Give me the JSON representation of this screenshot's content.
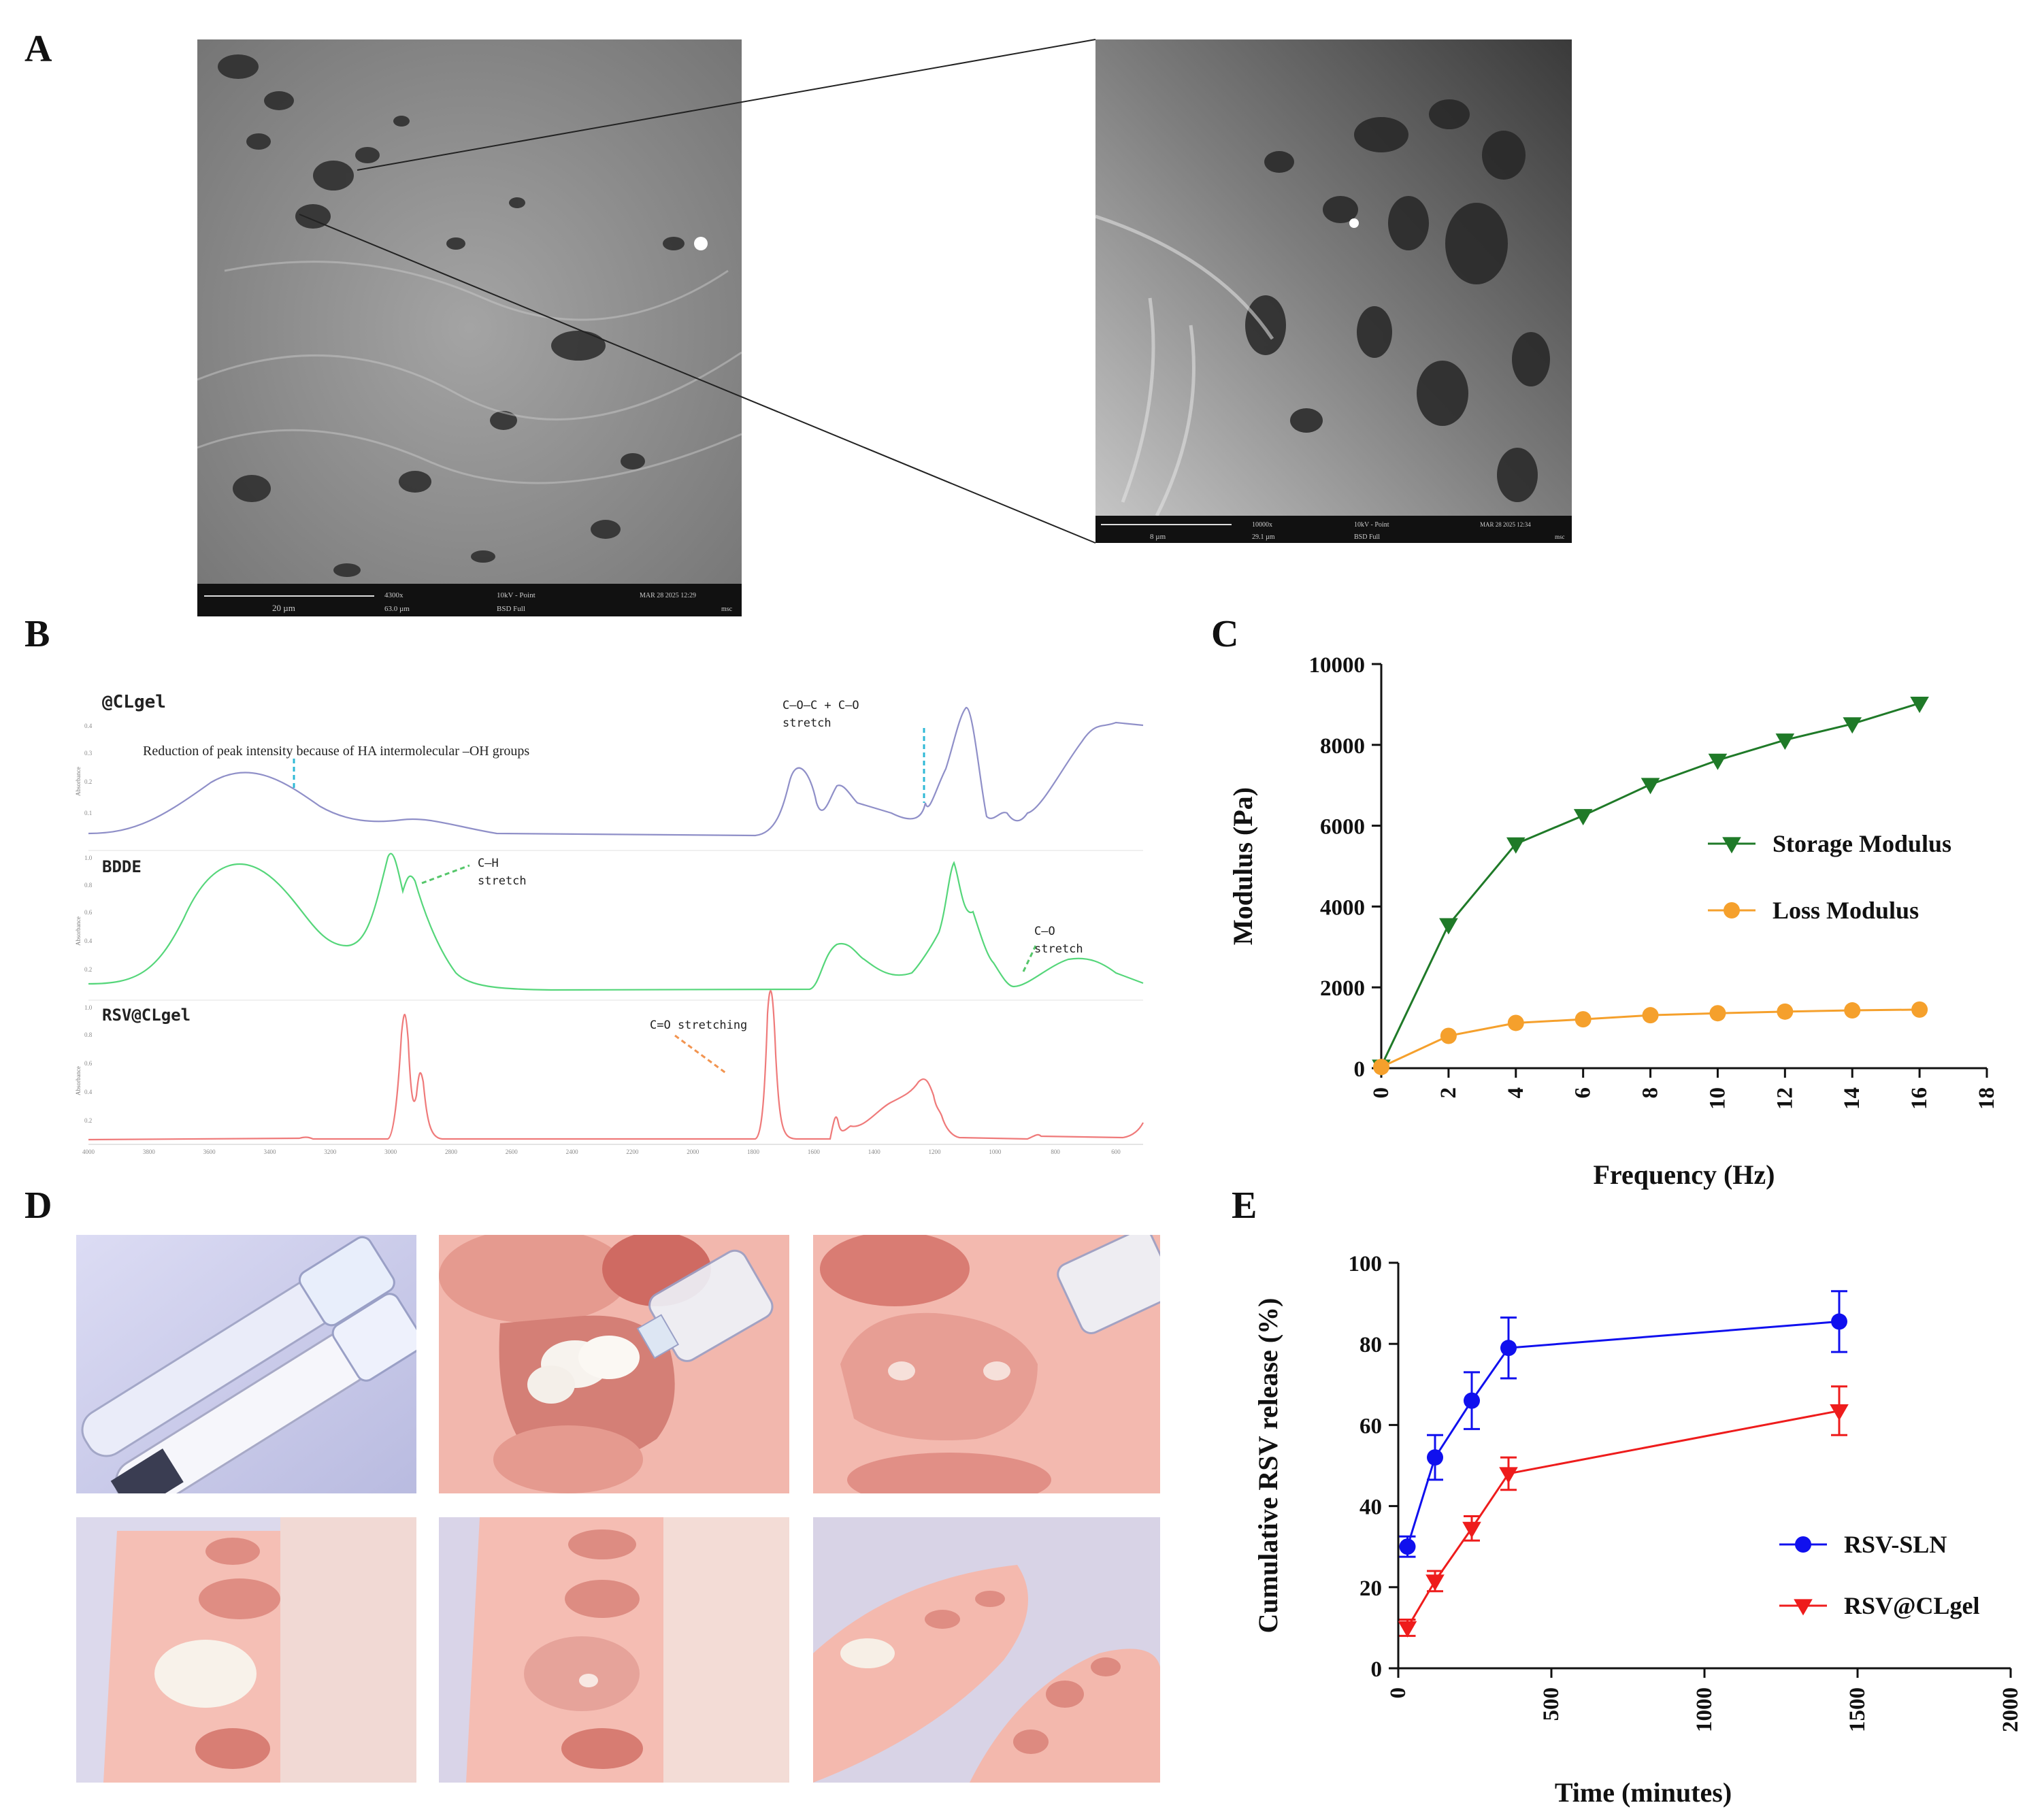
{
  "panels": {
    "A": "A",
    "B": "B",
    "C": "C",
    "D": "D",
    "E": "E"
  },
  "sem": {
    "left_info": {
      "scale": "20 µm",
      "mag": "4300x",
      "hfw": "63.0 µm",
      "kv": "10kV - Point",
      "det": "BSD Full",
      "date": "MAR 28 2025 12:29",
      "op": "msc"
    },
    "right_info": {
      "scale": "8 µm",
      "mag": "10000x",
      "hfw": "29.1 µm",
      "kv": "10kV - Point",
      "det": "BSD Full",
      "date": "MAR 28 2025 12:34",
      "op": "msc"
    }
  },
  "ftir": {
    "y_axis_label": "Absorbance",
    "spectra": [
      {
        "label": "@CLgel",
        "color": "#8f8fc8"
      },
      {
        "label": "BDDE",
        "color": "#55d67a"
      },
      {
        "label": "RSV@CLgel",
        "color": "#ef7a7a"
      }
    ],
    "annotations": {
      "oh": "Reduction of peak intensity because of HA intermolecular –OH groups",
      "coc_1": "C–O–C + C–O",
      "coc_2": "stretch",
      "ch_1": "C–H",
      "ch_2": "stretch",
      "co_1": "C–O",
      "co_2": "stretch",
      "c_o": "C=O stretching"
    },
    "ticks_top": [
      "0.4",
      "0.3",
      "0.2",
      "0.1"
    ],
    "ticks_mid": [
      "1.0",
      "0.8",
      "0.6",
      "0.4",
      "0.2"
    ],
    "ticks_bot": [
      "1.0",
      "0.8",
      "0.6",
      "0.4",
      "0.2"
    ],
    "x_ticks": [
      "4000",
      "3800",
      "3600",
      "3400",
      "3200",
      "3000",
      "2800",
      "2600",
      "2400",
      "2200",
      "2000",
      "1800",
      "1600",
      "1400",
      "1200",
      "1000",
      "800",
      "600"
    ]
  },
  "chart_data": [
    {
      "type": "line",
      "panel": "C",
      "xlabel": "Frequency (Hz)",
      "ylabel": "Modulus (Pa)",
      "xlim": [
        0,
        18
      ],
      "ylim": [
        0,
        10000
      ],
      "x_ticks": [
        "0",
        "2",
        "4",
        "6",
        "8",
        "10",
        "12",
        "14",
        "16",
        "18"
      ],
      "y_ticks": [
        "0",
        "2000",
        "4000",
        "6000",
        "8000",
        "10000"
      ],
      "legend_position": "right",
      "series": [
        {
          "name": "Storage Modulus",
          "color": "#1f7a28",
          "marker": "triangle-down",
          "x": [
            0,
            2,
            4,
            6,
            8,
            10,
            12,
            14,
            16
          ],
          "y": [
            50,
            3550,
            5550,
            6250,
            7020,
            7620,
            8120,
            8520,
            9030
          ]
        },
        {
          "name": "Loss Modulus",
          "color": "#f5a02c",
          "marker": "circle",
          "x": [
            0,
            2,
            4,
            6,
            8,
            10,
            12,
            14,
            16
          ],
          "y": [
            30,
            800,
            1120,
            1210,
            1310,
            1360,
            1400,
            1430,
            1450
          ]
        }
      ]
    },
    {
      "type": "line",
      "panel": "E",
      "xlabel": "Time (minutes)",
      "ylabel": "Cumulative RSV release (%)",
      "xlim": [
        0,
        2000
      ],
      "ylim": [
        0,
        100
      ],
      "x_ticks": [
        "0",
        "500",
        "1000",
        "1500",
        "2000"
      ],
      "y_ticks": [
        "0",
        "20",
        "40",
        "60",
        "80",
        "100"
      ],
      "legend_position": "bottom-right",
      "series": [
        {
          "name": "RSV-SLN",
          "color": "#1010ee",
          "marker": "circle",
          "x": [
            30,
            120,
            240,
            360,
            1440
          ],
          "y": [
            30,
            52,
            66,
            79,
            85.5
          ],
          "err": [
            2.5,
            5.5,
            7,
            7.5,
            7.5
          ]
        },
        {
          "name": "RSV@CLgel",
          "color": "#ee1c1c",
          "marker": "triangle-down",
          "x": [
            30,
            120,
            240,
            360,
            1440
          ],
          "y": [
            10,
            21.5,
            34.5,
            48,
            63.5
          ],
          "err": [
            2,
            2.5,
            3,
            4,
            6
          ]
        }
      ]
    }
  ]
}
